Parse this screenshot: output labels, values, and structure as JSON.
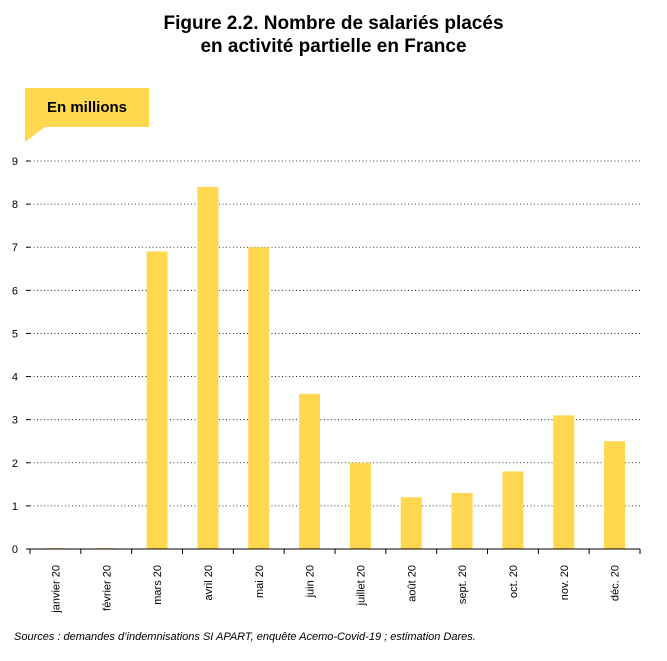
{
  "title_lines": [
    "Figure 2.2. Nombre de salariés placés",
    "en activité partielle en France"
  ],
  "unit_label": "En millions",
  "source": "Sources : demandes d’indemnisations SI APART, enquête Acemo-Covid-19 ; estimation Dares.",
  "colors": {
    "bar": "#FFD84F",
    "grid": "#000000"
  },
  "chart_data": {
    "type": "bar",
    "categories": [
      "janvier 20",
      "février 20",
      "mars 20",
      "avril 20",
      "mai 20",
      "juin 20",
      "juillet 20",
      "août 20",
      "sept. 20",
      "oct. 20",
      "nov. 20",
      "déc. 20"
    ],
    "values": [
      0.02,
      0.02,
      6.9,
      8.4,
      7.0,
      3.6,
      2.0,
      1.2,
      1.3,
      1.8,
      3.1,
      2.5
    ],
    "yticks": [
      0,
      1,
      2,
      3,
      4,
      5,
      6,
      7,
      8,
      9
    ],
    "ylim": [
      0,
      9
    ],
    "grid": "dotted horizontal",
    "legend": "none"
  }
}
